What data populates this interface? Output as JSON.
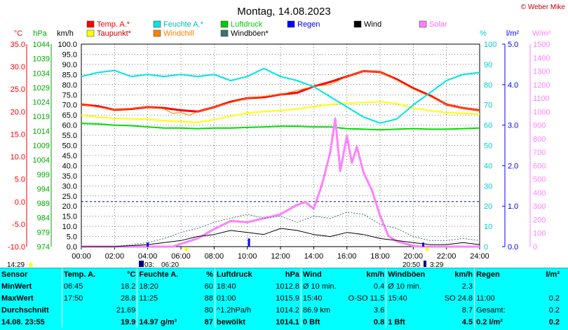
{
  "title": "Montag, 14.08.2023",
  "copyright": "© Weber Mike",
  "legend": [
    {
      "label": "Temp. A.*",
      "color": "#ff0000"
    },
    {
      "label": "Feuchte A.*",
      "color": "#00e5e5"
    },
    {
      "label": "Luftdruck",
      "color": "#00cc00"
    },
    {
      "label": "Regen",
      "color": "#0000ff"
    },
    {
      "label": "Wind",
      "color": "#000000"
    },
    {
      "label": "Solar",
      "color": "#ff80ff"
    },
    {
      "label": "Taupunkt*",
      "color": "#ffff00"
    },
    {
      "label": "Windchill",
      "color": "#ff8000"
    },
    {
      "label": "Windböen*",
      "color": "#407070"
    }
  ],
  "axis_units": {
    "temp": "°C",
    "pressure": "hPa",
    "wind": "km/h",
    "humidity": "%",
    "rain": "l/m²",
    "solar": "W/m²"
  },
  "time_extra": {
    "left": "14:29",
    "sunrise": "03:",
    "sunrise_time": "06:20",
    "sunset": "20:50",
    "sunset_time": "3:29"
  },
  "chart_data": {
    "type": "line",
    "x_unit": "hours",
    "x_ticks": [
      "00:00",
      "02:00",
      "04:00",
      "06:00",
      "08:00",
      "10:00",
      "12:00",
      "14:00",
      "16:00",
      "18:00",
      "20:00",
      "22:00",
      "24:00"
    ],
    "axes": {
      "temp": {
        "ticks": [
          "35.0",
          "30.0",
          "25.0",
          "20.0",
          "15.0",
          "10.0",
          "5.0",
          "0.0",
          "-5.0",
          "-10.0"
        ],
        "ylim": [
          -10,
          35
        ]
      },
      "pressure": {
        "ticks": [
          "1044",
          "1039",
          "1034",
          "1029",
          "1024",
          "1019",
          "1014",
          "1009",
          "1004",
          "999",
          "994",
          "989",
          "984",
          "979",
          "974"
        ],
        "ylim": [
          974,
          1044
        ]
      },
      "wind": {
        "ticks": [
          "100.0",
          "95.0",
          "90.0",
          "85.0",
          "80.0",
          "75.0",
          "70.0",
          "65.0",
          "60.0",
          "55.0",
          "50.0",
          "45.0",
          "40.0",
          "35.0",
          "30.0",
          "25.0",
          "20.0",
          "15.0",
          "10.0",
          "5.0",
          "0.0"
        ],
        "ylim": [
          0,
          100
        ]
      },
      "humidity": {
        "ticks": [
          "100",
          "90",
          "80",
          "70",
          "60",
          "50",
          "40",
          "30",
          "20",
          "10",
          "0"
        ],
        "ylim": [
          0,
          100
        ]
      },
      "rain": {
        "ticks": [
          "5.0",
          "4.0",
          "3.0",
          "2.0",
          "1.0",
          "0.0"
        ],
        "ylim": [
          0,
          5
        ]
      },
      "solar": {
        "ticks": [
          "1500",
          "1400",
          "1300",
          "1200",
          "1100",
          "1000",
          "900",
          "800",
          "700",
          "600",
          "500",
          "400",
          "300",
          "200",
          "100",
          "0"
        ],
        "ylim": [
          0,
          1500
        ]
      }
    },
    "series": [
      {
        "name": "Temp. A.*",
        "axis": "temp",
        "color": "#ff0000",
        "width": 3,
        "x": [
          0,
          1,
          2,
          3,
          4,
          5,
          6,
          7,
          8,
          9,
          10,
          11,
          12,
          13,
          14,
          15,
          16,
          17,
          18,
          19,
          20,
          21,
          22,
          23,
          24
        ],
        "y": [
          21.6,
          21.2,
          20.4,
          20.6,
          21.0,
          20.8,
          20.3,
          20.0,
          21.0,
          22.2,
          23.0,
          23.2,
          23.8,
          24.2,
          25.6,
          26.6,
          27.8,
          29.0,
          28.8,
          27.2,
          25.2,
          23.6,
          21.6,
          20.8,
          20.3
        ]
      },
      {
        "name": "Windchill",
        "axis": "temp",
        "color": "#ff8000",
        "width": 1,
        "x": [
          0,
          2,
          4,
          5,
          5.5,
          6,
          6.5,
          7,
          8,
          10,
          12,
          14,
          15,
          16,
          17,
          18,
          19,
          20,
          21,
          22,
          23,
          24
        ],
        "y": [
          21.6,
          20.4,
          21.0,
          20.6,
          19.6,
          19.8,
          19.2,
          20.0,
          21.0,
          23.0,
          23.8,
          25.6,
          26.0,
          27.8,
          29.0,
          28.8,
          27.0,
          25.0,
          23.4,
          21.6,
          20.8,
          20.3
        ]
      },
      {
        "name": "Taupunkt*",
        "axis": "temp",
        "color": "#ffff00",
        "width": 2,
        "x": [
          0,
          1,
          2,
          3,
          4,
          5,
          6,
          7,
          8,
          9,
          10,
          11,
          12,
          13,
          14,
          15,
          16,
          17,
          18,
          19,
          20,
          21,
          22,
          23,
          24
        ],
        "y": [
          19.2,
          18.8,
          18.5,
          18.4,
          18.3,
          18.0,
          17.8,
          17.6,
          18.2,
          19.0,
          19.7,
          20.0,
          20.2,
          20.6,
          21.1,
          21.6,
          21.9,
          22.0,
          22.2,
          21.8,
          20.8,
          20.2,
          19.8,
          19.6,
          19.4
        ]
      },
      {
        "name": "Feuchte A.*",
        "axis": "humidity",
        "color": "#00e5e5",
        "width": 2,
        "x": [
          0,
          1,
          2,
          3,
          4,
          5,
          6,
          7,
          8,
          9,
          10,
          11,
          12,
          13,
          14,
          15,
          16,
          17,
          18,
          19,
          20,
          21,
          22,
          23,
          24
        ],
        "y": [
          84,
          86,
          87,
          84,
          85,
          84,
          85,
          84,
          85,
          82,
          84,
          88,
          84,
          82,
          79,
          74,
          69,
          64,
          61,
          63,
          70,
          76,
          82,
          85,
          86
        ]
      },
      {
        "name": "Luftdruck",
        "axis": "pressure",
        "color": "#00dd00",
        "width": 2,
        "x": [
          0,
          1,
          2,
          3,
          4,
          5,
          6,
          7,
          8,
          9,
          10,
          11,
          12,
          13,
          14,
          15,
          16,
          17,
          18,
          19,
          20,
          21,
          22,
          23,
          24
        ],
        "y": [
          1016.6,
          1016.4,
          1016.0,
          1015.8,
          1015.4,
          1015.0,
          1015.0,
          1014.8,
          1015.0,
          1015.0,
          1015.2,
          1015.4,
          1015.6,
          1015.6,
          1015.4,
          1015.4,
          1014.8,
          1014.6,
          1014.4,
          1014.6,
          1014.8,
          1014.6,
          1014.6,
          1014.8,
          1015.0
        ]
      },
      {
        "name": "Solar",
        "axis": "solar",
        "color": "#ff80ff",
        "width": 3,
        "x": [
          0,
          5.5,
          6,
          7,
          8,
          9,
          10,
          11,
          12,
          13,
          13.5,
          14,
          14.5,
          15,
          15.3,
          15.6,
          16,
          16.3,
          16.6,
          17,
          17.5,
          18,
          18.5,
          19,
          20,
          20.5,
          24
        ],
        "y": [
          0,
          0,
          20,
          60,
          130,
          190,
          180,
          210,
          240,
          310,
          330,
          280,
          460,
          700,
          950,
          560,
          820,
          620,
          740,
          550,
          420,
          230,
          80,
          40,
          5,
          0,
          0
        ]
      },
      {
        "name": "Windböen*",
        "axis": "wind",
        "color": "#407070",
        "width": 1,
        "dash": "2,2",
        "x": [
          0,
          2,
          3,
          4,
          5,
          6,
          7,
          8,
          9,
          10,
          11,
          12,
          13,
          14,
          15,
          16,
          17,
          18,
          19,
          20,
          21,
          22,
          23,
          24
        ],
        "y": [
          0,
          0,
          1,
          2,
          4,
          7,
          9,
          12,
          14,
          16,
          14,
          15,
          12,
          15,
          14,
          17,
          16,
          11,
          9,
          5,
          3,
          3,
          4,
          3
        ]
      },
      {
        "name": "Wind",
        "axis": "wind",
        "color": "#000000",
        "width": 1,
        "x": [
          0,
          2,
          3,
          4,
          5,
          6,
          7,
          8,
          9,
          10,
          11,
          12,
          13,
          14,
          15,
          16,
          17,
          18,
          19,
          20,
          21,
          22,
          23,
          24
        ],
        "y": [
          0,
          0,
          0.5,
          1,
          2,
          3,
          5,
          6,
          8,
          7,
          6,
          9,
          8,
          6,
          5,
          7,
          6,
          4,
          3,
          2,
          1,
          1,
          2,
          1
        ]
      }
    ],
    "rain_bars": [
      {
        "x": 4.0,
        "v": 0.1
      },
      {
        "x": 10.1,
        "v": 0.2
      },
      {
        "x": 20.6,
        "v": 0.1
      }
    ]
  },
  "table": {
    "headers": [
      "Sensor",
      "Temp. A.",
      "°C",
      "Feuchte A.",
      "%",
      "Luftdruck",
      "hPa",
      "Wind",
      "km/h",
      "Windböen",
      "km/h",
      "Regen",
      "l/m²"
    ],
    "rows": [
      [
        "MinWert",
        "06:45",
        "18.2",
        "18:20",
        "60",
        "18:40",
        "1012.8",
        "Ø 10 min.",
        "0.4",
        "Ø 10 min.",
        "2.3",
        "",
        ""
      ],
      [
        "MaxWert",
        "17:50",
        "28.8",
        "11:25",
        "88",
        "01:00",
        "1015.9",
        "15:40",
        "O-SO 11.5",
        "15:40",
        "SO 24.8",
        "11:00",
        "0.2"
      ],
      [
        "Durchschnitt",
        "",
        "21.69",
        "",
        "80",
        "^1.2hPa/h",
        "1014.2",
        "86.9 km",
        "3.6",
        "",
        "8.7",
        "Gesamt:",
        "0.2"
      ],
      [
        "14.08. 23:55",
        "",
        "19.9",
        "14.97 g/m³",
        "87",
        "bewölkt",
        "1014.1",
        "0 Bft",
        "0.8",
        "1 Bft",
        "4.5",
        "0.2 l/m²",
        "0.2"
      ]
    ]
  }
}
